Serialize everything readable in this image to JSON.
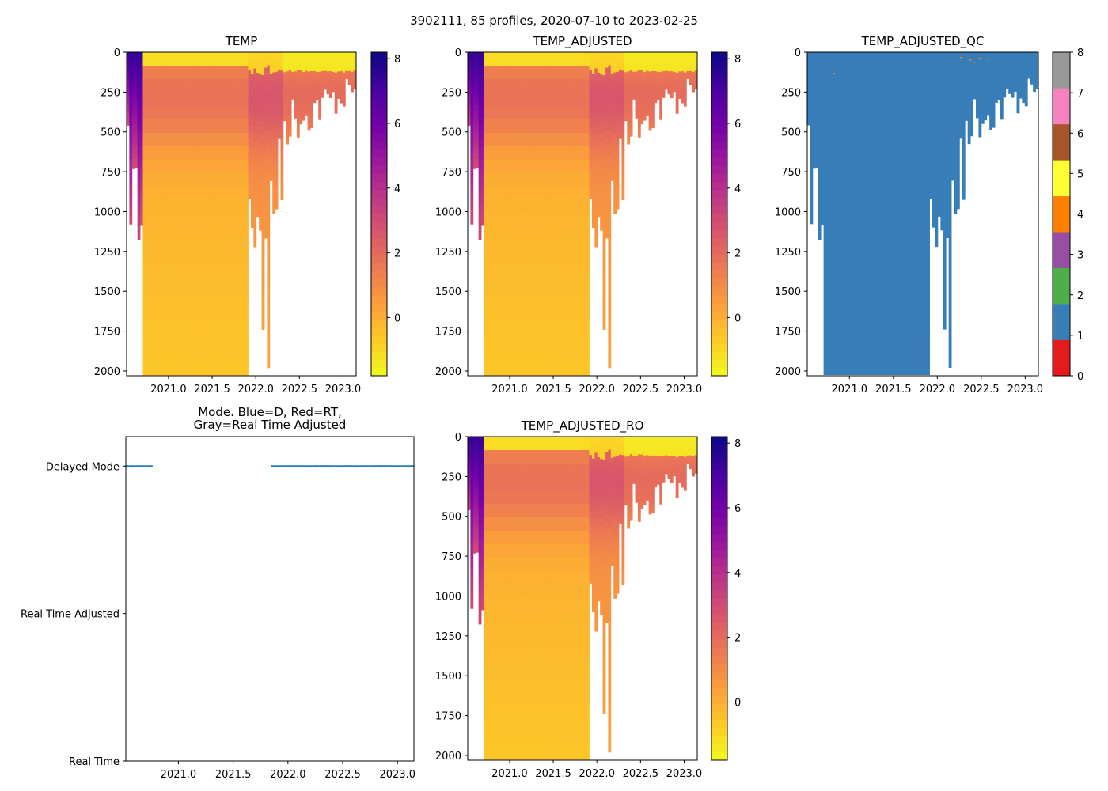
{
  "figure": {
    "suptitle": "3902111, 85 profiles, 2020-07-10 to 2023-02-25"
  },
  "colors": {
    "plasma": [
      "#0d0887",
      "#46039f",
      "#7201a8",
      "#9c179e",
      "#bd3786",
      "#d8576b",
      "#ed7953",
      "#fb9f3a",
      "#fdca26",
      "#f0f921"
    ],
    "qc": [
      "#e41a1c",
      "#377eb8",
      "#4daf4a",
      "#984ea3",
      "#ff7f00",
      "#ffff33",
      "#a65628",
      "#f781bf",
      "#999999"
    ],
    "mode_blue": "#1f77b4"
  },
  "chart_data": [
    {
      "id": "temp",
      "type": "heatmap",
      "title": "TEMP",
      "xlabel": "",
      "ylabel": "",
      "xlim": [
        2020.52,
        2023.15
      ],
      "ylim": [
        2030,
        0
      ],
      "xticks": [
        "2021.0",
        "2021.5",
        "2022.0",
        "2022.5",
        "2023.0"
      ],
      "xtick_values": [
        2021.0,
        2021.5,
        2022.0,
        2022.5,
        2023.0
      ],
      "yticks": [
        "0",
        "250",
        "500",
        "750",
        "1000",
        "1250",
        "1500",
        "1750",
        "2000"
      ],
      "ytick_values": [
        0,
        250,
        500,
        750,
        1000,
        1250,
        1500,
        1750,
        2000
      ],
      "colorbar": {
        "range": [
          -1.8,
          8.2
        ],
        "ticks": [
          "0",
          "2",
          "4",
          "6",
          "8"
        ],
        "tick_values": [
          0,
          2,
          4,
          6,
          8
        ]
      },
      "profile_segments": [
        {
          "x": [
            2020.52,
            2020.7
          ],
          "max_depth": [
            800,
            1200
          ],
          "surface_value": 7.5,
          "deep_value": 3.0
        },
        {
          "x": [
            2020.7,
            2021.9
          ],
          "max_depth": [
            2025,
            2025
          ],
          "surface_value": -1.2,
          "deep_value": 0.3
        },
        {
          "x": [
            2021.9,
            2022.3
          ],
          "max_depth": [
            1200,
            900
          ],
          "surface_value": -1.0,
          "deep_value": 1.2
        },
        {
          "x": [
            2022.3,
            2023.15
          ],
          "max_depth": [
            500,
            250
          ],
          "surface_value": -1.5,
          "deep_value": 0.5
        }
      ]
    },
    {
      "id": "temp_adjusted",
      "type": "heatmap",
      "title": "TEMP_ADJUSTED",
      "xlim": [
        2020.52,
        2023.15
      ],
      "ylim": [
        2030,
        0
      ],
      "xticks": [
        "2021.0",
        "2021.5",
        "2022.0",
        "2022.5",
        "2023.0"
      ],
      "xtick_values": [
        2021.0,
        2021.5,
        2022.0,
        2022.5,
        2023.0
      ],
      "yticks": [
        "0",
        "250",
        "500",
        "750",
        "1000",
        "1250",
        "1500",
        "1750",
        "2000"
      ],
      "ytick_values": [
        0,
        250,
        500,
        750,
        1000,
        1250,
        1500,
        1750,
        2000
      ],
      "colorbar": {
        "range": [
          -1.8,
          8.2
        ],
        "ticks": [
          "0",
          "2",
          "4",
          "6",
          "8"
        ],
        "tick_values": [
          0,
          2,
          4,
          6,
          8
        ]
      }
    },
    {
      "id": "temp_adjusted_qc",
      "type": "heatmap",
      "title": "TEMP_ADJUSTED_QC",
      "xlim": [
        2020.52,
        2023.15
      ],
      "ylim": [
        2030,
        0
      ],
      "xticks": [
        "2021.0",
        "2021.5",
        "2022.0",
        "2022.5",
        "2023.0"
      ],
      "xtick_values": [
        2021.0,
        2021.5,
        2022.0,
        2022.5,
        2023.0
      ],
      "yticks": [
        "0",
        "250",
        "500",
        "750",
        "1000",
        "1250",
        "1500",
        "1750",
        "2000"
      ],
      "ytick_values": [
        0,
        250,
        500,
        750,
        1000,
        1250,
        1500,
        1750,
        2000
      ],
      "colorbar": {
        "range": [
          0,
          8
        ],
        "ticks": [
          "0",
          "1",
          "2",
          "3",
          "4",
          "5",
          "6",
          "7",
          "8"
        ],
        "tick_values": [
          0,
          1,
          2,
          3,
          4,
          5,
          6,
          7,
          8
        ]
      },
      "dominant_flag": 1
    },
    {
      "id": "mode",
      "type": "scatter",
      "title": "Mode. Blue=D, Red=RT,",
      "title_line2": "Gray=Real Time Adjusted",
      "xlim": [
        2020.52,
        2023.15
      ],
      "ylim": [
        0,
        1.1
      ],
      "xticks": [
        "2021.0",
        "2021.5",
        "2022.0",
        "2022.5",
        "2023.0"
      ],
      "xtick_values": [
        2021.0,
        2021.5,
        2022.0,
        2022.5,
        2023.0
      ],
      "yticks": [
        "Delayed Mode",
        "Real Time Adjusted",
        "Real Time"
      ],
      "ytick_values": [
        1.0,
        0.5,
        0.0
      ],
      "series": [
        {
          "name": "D",
          "color": "blue",
          "y": 1.0,
          "x_ranges": [
            [
              2020.52,
              2020.76
            ],
            [
              2021.85,
              2023.15
            ]
          ]
        }
      ]
    },
    {
      "id": "temp_adjusted_ro",
      "type": "heatmap",
      "title": "TEMP_ADJUSTED_RO",
      "xlim": [
        2020.52,
        2023.15
      ],
      "ylim": [
        2030,
        0
      ],
      "xticks": [
        "2021.0",
        "2021.5",
        "2022.0",
        "2022.5",
        "2023.0"
      ],
      "xtick_values": [
        2021.0,
        2021.5,
        2022.0,
        2022.5,
        2023.0
      ],
      "yticks": [
        "0",
        "250",
        "500",
        "750",
        "1000",
        "1250",
        "1500",
        "1750",
        "2000"
      ],
      "ytick_values": [
        0,
        250,
        500,
        750,
        1000,
        1250,
        1500,
        1750,
        2000
      ],
      "colorbar": {
        "range": [
          -1.8,
          8.2
        ],
        "ticks": [
          "0",
          "2",
          "4",
          "6",
          "8"
        ],
        "tick_values": [
          0,
          2,
          4,
          6,
          8
        ]
      }
    }
  ]
}
